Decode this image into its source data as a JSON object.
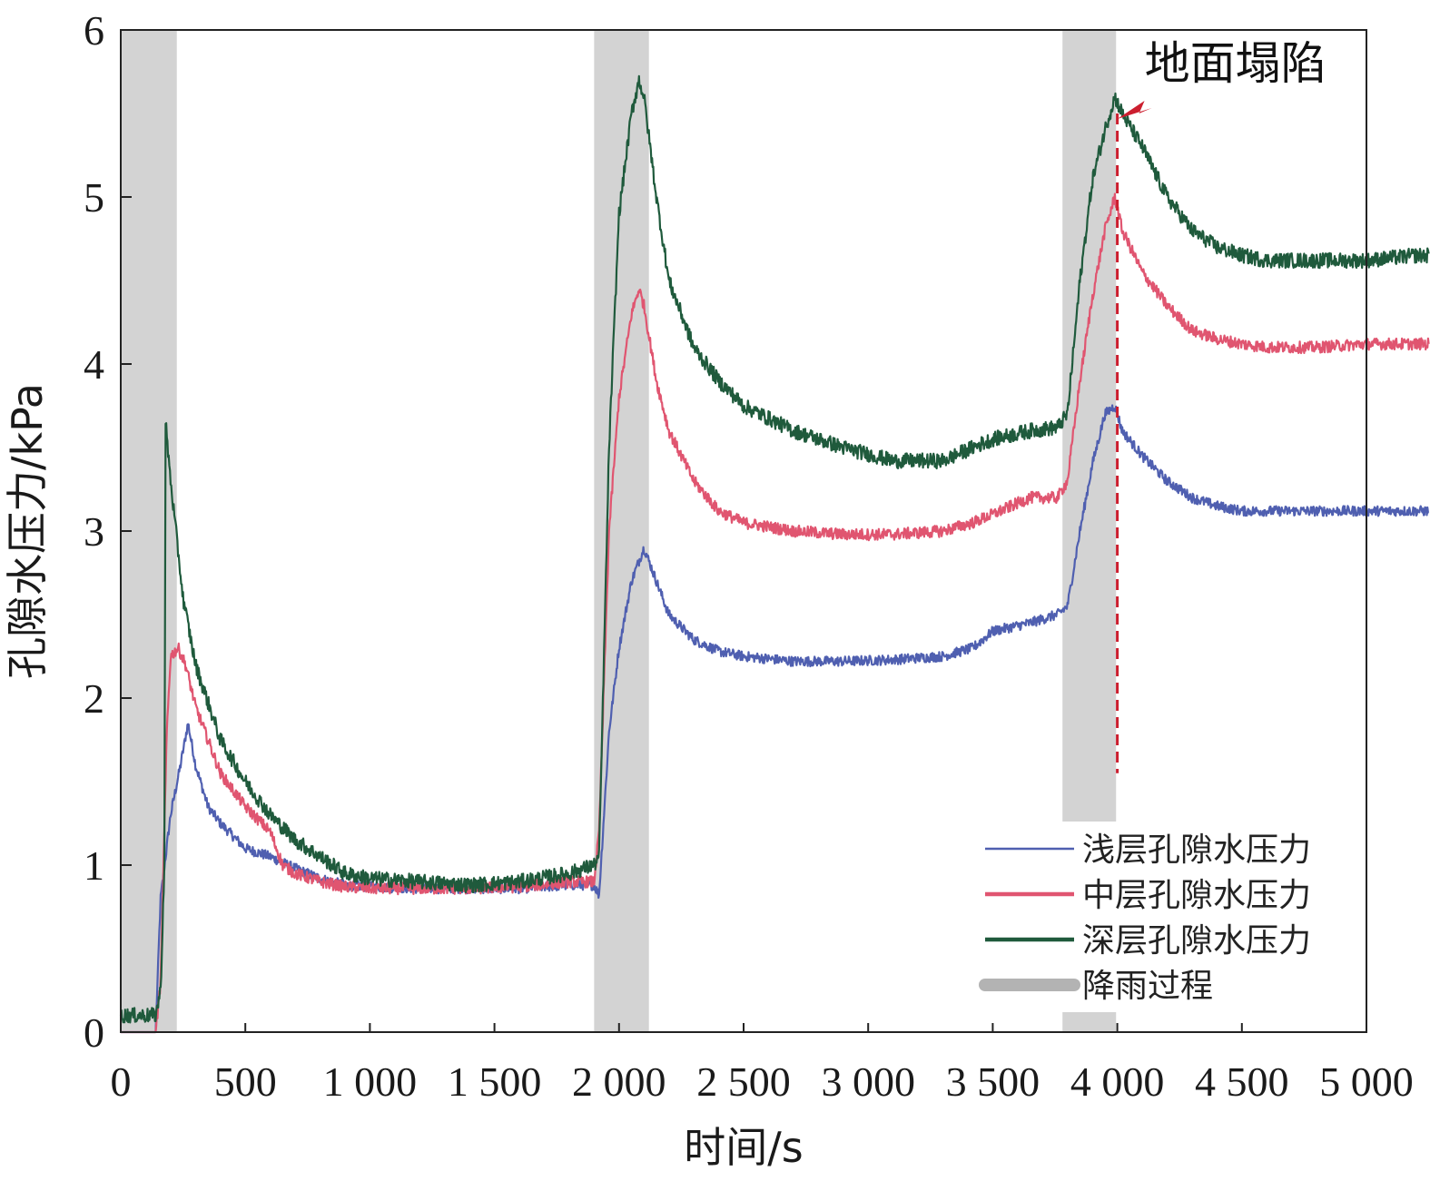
{
  "chart_data": {
    "type": "line",
    "title": "",
    "xlabel": "时间/s",
    "ylabel": "孔隙水压力/kPa",
    "xlim": [
      0,
      5000
    ],
    "ylim": [
      0,
      6
    ],
    "x_ticks": [
      0,
      500,
      1000,
      1500,
      2000,
      2500,
      3000,
      3500,
      4000,
      4500,
      5000
    ],
    "x_tick_labels": [
      "0",
      "500",
      "1 000",
      "1 500",
      "2 000",
      "2 500",
      "3 000",
      "3 500",
      "4 000",
      "4 500",
      "5 000"
    ],
    "y_ticks": [
      0,
      1,
      2,
      3,
      4,
      5,
      6
    ],
    "y_tick_labels": [
      "0",
      "1",
      "2",
      "3",
      "4",
      "5",
      "6"
    ],
    "grid": false,
    "legend_position": "bottom-right",
    "rain_periods": [
      [
        0,
        225
      ],
      [
        1900,
        2120
      ],
      [
        3780,
        3995
      ]
    ],
    "rain_label": "降雨过程",
    "rain_color": "#d3d3d3",
    "series": [
      {
        "name": "浅层孔隙水压力",
        "color": "#4f5fb0",
        "x": [
          0,
          140,
          160,
          200,
          240,
          270,
          300,
          350,
          400,
          500,
          600,
          700,
          800,
          900,
          1000,
          1200,
          1400,
          1600,
          1800,
          1900,
          1920,
          1960,
          2000,
          2050,
          2100,
          2150,
          2200,
          2300,
          2400,
          2500,
          2700,
          2900,
          3100,
          3300,
          3420,
          3500,
          3650,
          3760,
          3800,
          3850,
          3900,
          3950,
          3990,
          4020,
          4100,
          4200,
          4300,
          4400,
          4500,
          4600,
          4800,
          5000,
          5200,
          5250
        ],
        "y": [
          0,
          0,
          0.8,
          1.3,
          1.6,
          1.85,
          1.6,
          1.35,
          1.25,
          1.1,
          1.05,
          0.98,
          0.92,
          0.88,
          0.87,
          0.86,
          0.86,
          0.86,
          0.88,
          0.88,
          0.82,
          1.8,
          2.3,
          2.7,
          2.9,
          2.7,
          2.5,
          2.35,
          2.28,
          2.25,
          2.22,
          2.22,
          2.23,
          2.25,
          2.3,
          2.4,
          2.45,
          2.5,
          2.55,
          3.0,
          3.4,
          3.7,
          3.75,
          3.6,
          3.45,
          3.3,
          3.2,
          3.15,
          3.12,
          3.12,
          3.12,
          3.12,
          3.12,
          3.12
        ],
        "noise": 0.03
      },
      {
        "name": "中层孔隙水压力",
        "color": "#e05570",
        "x": [
          0,
          140,
          160,
          185,
          200,
          230,
          260,
          300,
          350,
          400,
          500,
          600,
          650,
          700,
          800,
          900,
          1000,
          1200,
          1400,
          1600,
          1800,
          1900,
          1920,
          1960,
          2000,
          2050,
          2080,
          2100,
          2150,
          2200,
          2300,
          2400,
          2500,
          2700,
          2900,
          3100,
          3300,
          3420,
          3500,
          3650,
          3760,
          3800,
          3850,
          3900,
          3950,
          3990,
          4020,
          4100,
          4200,
          4300,
          4400,
          4500,
          4600,
          4800,
          5000,
          5200,
          5250
        ],
        "y": [
          0,
          0,
          0.3,
          1.8,
          2.25,
          2.3,
          2.2,
          1.95,
          1.75,
          1.55,
          1.35,
          1.2,
          1.0,
          0.95,
          0.9,
          0.87,
          0.86,
          0.86,
          0.86,
          0.87,
          0.9,
          0.9,
          1.2,
          3.0,
          3.8,
          4.3,
          4.45,
          4.35,
          3.9,
          3.6,
          3.3,
          3.12,
          3.05,
          3.0,
          2.98,
          2.98,
          3.0,
          3.05,
          3.1,
          3.2,
          3.2,
          3.3,
          3.9,
          4.4,
          4.8,
          5.0,
          4.8,
          4.55,
          4.35,
          4.2,
          4.15,
          4.12,
          4.1,
          4.1,
          4.12,
          4.12,
          4.12
        ],
        "noise": 0.035
      },
      {
        "name": "深层孔隙水压力",
        "color": "#1f5a3c",
        "x": [
          0,
          140,
          160,
          175,
          180,
          200,
          250,
          300,
          400,
          500,
          600,
          700,
          800,
          900,
          1000,
          1200,
          1400,
          1600,
          1800,
          1900,
          1920,
          1960,
          2000,
          2050,
          2080,
          2100,
          2150,
          2200,
          2300,
          2400,
          2500,
          2700,
          2900,
          3100,
          3300,
          3420,
          3500,
          3650,
          3760,
          3800,
          3850,
          3900,
          3950,
          3990,
          4020,
          4100,
          4200,
          4300,
          4400,
          4500,
          4600,
          4800,
          5000,
          5200,
          5250
        ],
        "y": [
          0.1,
          0.1,
          0.25,
          1.0,
          3.65,
          3.3,
          2.6,
          2.2,
          1.75,
          1.5,
          1.3,
          1.15,
          1.05,
          0.95,
          0.92,
          0.9,
          0.88,
          0.9,
          0.95,
          1.0,
          1.05,
          3.5,
          4.9,
          5.5,
          5.7,
          5.6,
          5.0,
          4.5,
          4.1,
          3.9,
          3.75,
          3.6,
          3.5,
          3.42,
          3.42,
          3.5,
          3.55,
          3.6,
          3.62,
          3.7,
          4.5,
          5.1,
          5.4,
          5.6,
          5.5,
          5.3,
          5.0,
          4.8,
          4.7,
          4.65,
          4.62,
          4.62,
          4.62,
          4.65,
          4.65
        ],
        "noise": 0.045
      }
    ],
    "annotations": [
      {
        "text": "地面塌陷",
        "x": 4000,
        "y": 5.5,
        "line_to_y": 1.55,
        "color": "#cc1f2f"
      }
    ]
  }
}
